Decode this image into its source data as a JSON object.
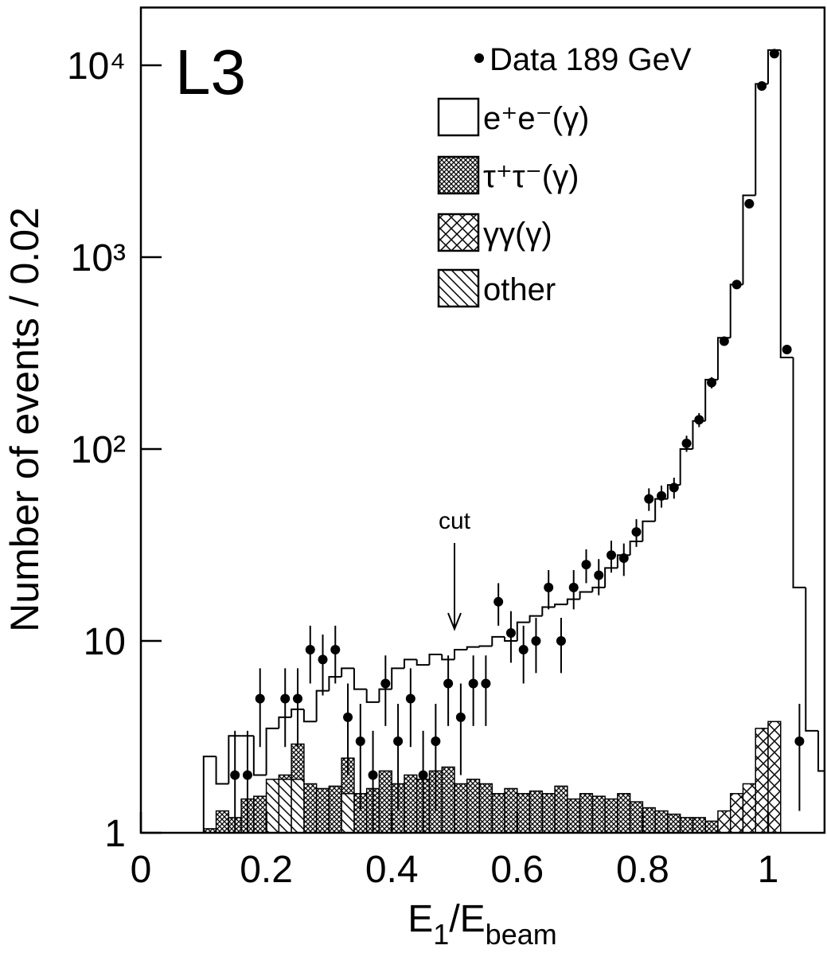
{
  "chart_data": {
    "type": "histogram",
    "label": "L3",
    "xlabel": [
      "E",
      "1",
      "/E",
      "beam"
    ],
    "ylabel": "Number of events / 0.02",
    "xlim": [
      0,
      1.09
    ],
    "ylim": [
      1,
      20000
    ],
    "log_y": true,
    "xticks": [
      0,
      0.2,
      0.4,
      0.6,
      0.8,
      1
    ],
    "yticks": [
      1,
      10,
      {
        "value": 100,
        "label": "10²"
      },
      {
        "value": 1000,
        "label": "10³"
      },
      {
        "value": 10000,
        "label": "10⁴"
      }
    ],
    "legend": "top-right",
    "bins": [
      0.1,
      0.12,
      0.14,
      0.16,
      0.18,
      0.2,
      0.22,
      0.24,
      0.26,
      0.28,
      0.3,
      0.32,
      0.34,
      0.36,
      0.38,
      0.4,
      0.42,
      0.44,
      0.46,
      0.48,
      0.5,
      0.52,
      0.54,
      0.56,
      0.58,
      0.6,
      0.62,
      0.64,
      0.66,
      0.68,
      0.7,
      0.72,
      0.74,
      0.76,
      0.78,
      0.8,
      0.82,
      0.84,
      0.86,
      0.88,
      0.9,
      0.92,
      0.94,
      0.96,
      0.98,
      1.0,
      1.02,
      1.04,
      1.06,
      1.08,
      1.1
    ],
    "series": [
      {
        "name": "e⁺e⁻(γ)",
        "color": "#000000",
        "hatch": "none",
        "values": [
          2.5,
          1.8,
          3.2,
          3.2,
          2.0,
          3.5,
          4.0,
          4.4,
          3.8,
          5.5,
          6.5,
          7.2,
          5.6,
          4.8,
          5.6,
          7.2,
          8.0,
          7.5,
          8.5,
          8.0,
          9.0,
          9.3,
          9.4,
          10.5,
          10.0,
          12.5,
          13.5,
          15.0,
          15.5,
          16.5,
          18,
          19,
          24,
          28,
          33,
          42,
          55,
          65,
          100,
          140,
          230,
          380,
          720,
          2100,
          8000,
          12000,
          300,
          19,
          3.4,
          2.1
        ]
      },
      {
        "name": "τ⁺τ⁻(γ)",
        "color": "#000000",
        "hatch": "dense",
        "values": [
          1.05,
          1.3,
          1.2,
          1.5,
          1.55,
          1.6,
          2.0,
          2.9,
          1.8,
          1.7,
          1.75,
          2.45,
          1.6,
          1.7,
          2.1,
          1.8,
          2.0,
          1.9,
          2.1,
          2.2,
          1.8,
          1.9,
          1.8,
          1.6,
          1.7,
          1.6,
          1.65,
          1.6,
          1.75,
          1.5,
          1.6,
          1.55,
          1.5,
          1.6,
          1.45,
          1.35,
          1.3,
          1.25,
          1.2,
          1.2,
          1.15,
          1.1,
          1.1,
          1.05,
          1.05,
          1.02,
          0,
          0,
          0,
          0
        ]
      },
      {
        "name": "γγ(γ)",
        "color": "#000000",
        "hatch": "cross",
        "values": [
          0,
          0,
          0,
          0,
          0,
          0,
          0,
          0,
          0,
          0,
          0,
          0,
          0,
          0,
          0,
          0,
          0,
          0,
          0,
          0,
          0,
          0,
          0,
          0,
          0,
          0,
          0,
          0,
          0,
          0,
          0,
          0,
          0,
          0,
          0,
          0,
          0,
          0,
          0,
          0,
          0,
          1.3,
          1.6,
          1.8,
          3.5,
          3.8,
          0,
          0,
          0,
          0
        ]
      },
      {
        "name": "other",
        "color": "#000000",
        "hatch": "diagonal",
        "values": [
          0,
          0,
          0,
          0,
          0,
          1.9,
          1.9,
          1.9,
          0,
          0,
          0,
          1.6,
          0,
          0,
          0,
          0,
          0,
          0,
          0,
          0,
          0,
          0,
          0,
          0,
          0,
          0,
          0,
          0,
          0,
          0,
          0,
          0,
          0,
          0,
          0,
          0,
          0,
          0,
          0,
          0,
          0,
          0,
          0,
          0,
          0,
          0,
          0,
          0,
          0,
          0
        ]
      }
    ],
    "points": {
      "name": "Data 189 GeV",
      "color": "#000000",
      "x": [
        0.15,
        0.17,
        0.19,
        0.23,
        0.25,
        0.27,
        0.29,
        0.31,
        0.33,
        0.35,
        0.37,
        0.39,
        0.41,
        0.43,
        0.45,
        0.47,
        0.49,
        0.51,
        0.53,
        0.55,
        0.57,
        0.59,
        0.61,
        0.63,
        0.65,
        0.67,
        0.69,
        0.71,
        0.73,
        0.75,
        0.77,
        0.79,
        0.81,
        0.83,
        0.85,
        0.87,
        0.89,
        0.91,
        0.93,
        0.95,
        0.97,
        0.99,
        1.01,
        1.03,
        1.05
      ],
      "values": [
        2,
        2,
        5,
        5,
        5,
        9,
        8,
        9,
        4,
        3,
        2,
        6,
        3,
        5,
        2,
        3,
        6,
        4,
        6,
        6,
        16,
        11,
        9,
        10,
        19,
        10,
        19,
        25,
        22,
        28,
        27,
        37,
        55,
        57,
        63,
        107,
        142,
        222,
        365,
        720,
        1900,
        7800,
        11500,
        330,
        3
      ],
      "errors": [
        1.4,
        1.4,
        2.2,
        2.2,
        2.2,
        3,
        2.8,
        3,
        2,
        1.7,
        1.4,
        2.4,
        1.7,
        2.2,
        1.4,
        1.7,
        2.4,
        2,
        2.4,
        2.4,
        4,
        3.3,
        3,
        3.2,
        4.4,
        3.2,
        4.4,
        5,
        4.7,
        5.3,
        5.2,
        6.1,
        7.4,
        7.5,
        7.9,
        10.3,
        11.9,
        14.9,
        19.1,
        26.8,
        43.6,
        88.3,
        107,
        18.2,
        1.7
      ]
    },
    "cut": {
      "text": "cut",
      "x": 0.5
    }
  }
}
